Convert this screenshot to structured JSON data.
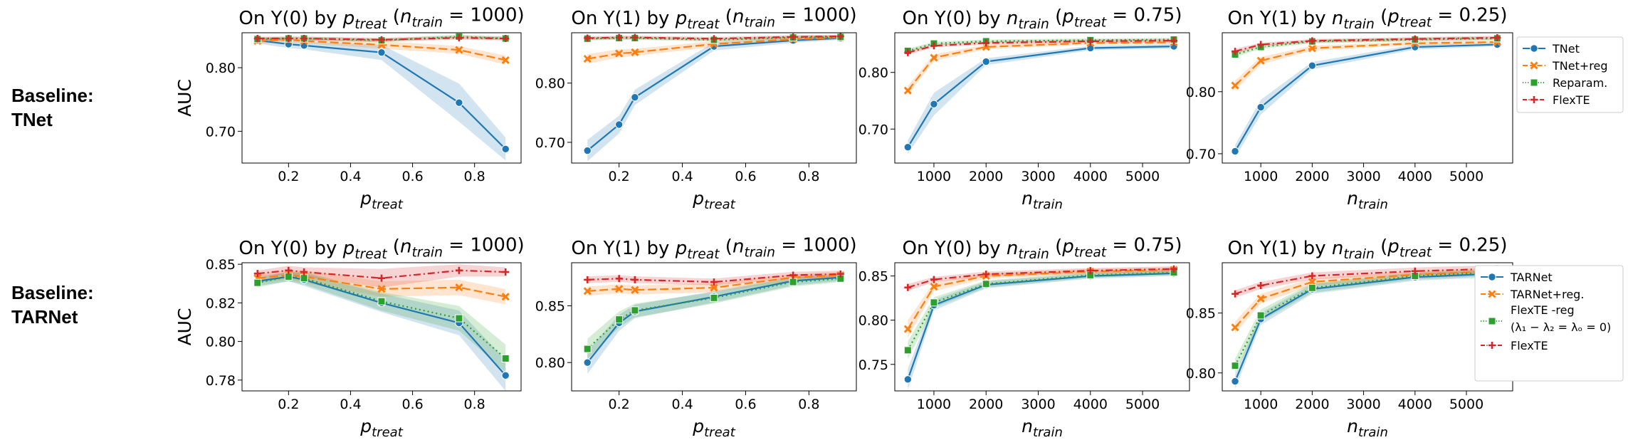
{
  "row_labels": [
    "Baseline:\nTNet",
    "Baseline:\nTARNet"
  ],
  "legends": [
    {
      "entries": [
        {
          "label": "TNet",
          "color": "#1f77b4",
          "marker": "circle",
          "dash": "solid"
        },
        {
          "label": "TNet+reg",
          "color": "#ff7f0e",
          "marker": "x",
          "dash": "dashed"
        },
        {
          "label": "Reparam.",
          "color": "#2ca02c",
          "marker": "square",
          "dash": "dotted"
        },
        {
          "label": "FlexTE",
          "color": "#d62728",
          "marker": "plus",
          "dash": "dashdot"
        }
      ]
    },
    {
      "entries": [
        {
          "label": "TARNet",
          "color": "#1f77b4",
          "marker": "circle",
          "dash": "solid"
        },
        {
          "label": "TARNet+reg.",
          "color": "#ff7f0e",
          "marker": "x",
          "dash": "dashed"
        },
        {
          "label": "FlexTE -reg",
          "label2": "(λ₁ − λ₂ = λₒ = 0)",
          "color": "#2ca02c",
          "marker": "square",
          "dash": "dotted"
        },
        {
          "label": "FlexTE",
          "color": "#d62728",
          "marker": "plus",
          "dash": "dashdot"
        }
      ]
    }
  ],
  "chart_data": [
    {
      "type": "line",
      "row": 0,
      "col": 0,
      "title": "On Y(0) by p_treat (n_train = 1000)",
      "xlabel": "p_treat",
      "ylabel": "AUC",
      "xlim": [
        0.05,
        0.95
      ],
      "ylim": [
        0.65,
        0.855
      ],
      "xticks": [
        0.2,
        0.4,
        0.6,
        0.8
      ],
      "xticklabels": [
        "0.2",
        "0.4",
        "0.6",
        "0.8"
      ],
      "yticks": [
        0.7,
        0.8
      ],
      "yticklabels": [
        "0.70",
        "0.80"
      ],
      "x": [
        0.1,
        0.2,
        0.25,
        0.5,
        0.75,
        0.9
      ],
      "series": [
        {
          "name": "TNet",
          "values": [
            0.843,
            0.837,
            0.835,
            0.824,
            0.745,
            0.672
          ],
          "band": [
            0.005,
            0.006,
            0.006,
            0.012,
            0.03,
            0.018
          ]
        },
        {
          "name": "TNet+reg",
          "values": [
            0.842,
            0.844,
            0.842,
            0.836,
            0.828,
            0.812
          ],
          "band": [
            0.004,
            0.004,
            0.004,
            0.006,
            0.006,
            0.007
          ]
        },
        {
          "name": "Reparam.",
          "values": [
            0.845,
            0.846,
            0.846,
            0.843,
            0.849,
            0.846
          ],
          "band": [
            0.003,
            0.003,
            0.003,
            0.003,
            0.003,
            0.003
          ]
        },
        {
          "name": "FlexTE",
          "values": [
            0.846,
            0.846,
            0.846,
            0.844,
            0.847,
            0.846
          ],
          "band": [
            0.003,
            0.003,
            0.003,
            0.003,
            0.003,
            0.003
          ]
        }
      ]
    },
    {
      "type": "line",
      "row": 0,
      "col": 1,
      "title": "On Y(1) by p_treat (n_train = 1000)",
      "xlabel": "p_treat",
      "ylabel": "",
      "xlim": [
        0.05,
        0.95
      ],
      "ylim": [
        0.665,
        0.885
      ],
      "xticks": [
        0.2,
        0.4,
        0.6,
        0.8
      ],
      "xticklabels": [
        "0.2",
        "0.4",
        "0.6",
        "0.8"
      ],
      "yticks": [
        0.7,
        0.8
      ],
      "yticklabels": [
        "0.70",
        "0.80"
      ],
      "x": [
        0.1,
        0.2,
        0.25,
        0.5,
        0.75,
        0.9
      ],
      "series": [
        {
          "name": "TNet",
          "values": [
            0.686,
            0.73,
            0.776,
            0.862,
            0.872,
            0.876
          ],
          "band": [
            0.018,
            0.015,
            0.013,
            0.007,
            0.004,
            0.003
          ]
        },
        {
          "name": "TNet+reg",
          "values": [
            0.841,
            0.85,
            0.852,
            0.866,
            0.874,
            0.877
          ],
          "band": [
            0.008,
            0.007,
            0.006,
            0.005,
            0.004,
            0.003
          ]
        },
        {
          "name": "Reparam.",
          "values": [
            0.875,
            0.876,
            0.876,
            0.873,
            0.877,
            0.878
          ],
          "band": [
            0.003,
            0.003,
            0.003,
            0.003,
            0.003,
            0.003
          ]
        },
        {
          "name": "FlexTE",
          "values": [
            0.876,
            0.877,
            0.877,
            0.875,
            0.878,
            0.879
          ],
          "band": [
            0.003,
            0.003,
            0.003,
            0.003,
            0.003,
            0.003
          ]
        }
      ]
    },
    {
      "type": "line",
      "row": 0,
      "col": 2,
      "title": "On Y(0) by n_train (p_treat = 0.75)",
      "xlabel": "n_train",
      "ylabel": "",
      "xlim": [
        250,
        5900
      ],
      "ylim": [
        0.64,
        0.87
      ],
      "xticks": [
        1000,
        2000,
        3000,
        4000,
        5000
      ],
      "xticklabels": [
        "1000",
        "2000",
        "3000",
        "4000",
        "5000"
      ],
      "yticks": [
        0.7,
        0.8
      ],
      "yticklabels": [
        "0.70",
        "0.80"
      ],
      "x": [
        500,
        1000,
        2000,
        4000,
        5600
      ],
      "series": [
        {
          "name": "TNet",
          "values": [
            0.668,
            0.744,
            0.819,
            0.843,
            0.846
          ],
          "band": [
            0.012,
            0.02,
            0.006,
            0.004,
            0.004
          ]
        },
        {
          "name": "TNet+reg",
          "values": [
            0.768,
            0.826,
            0.845,
            0.852,
            0.853
          ],
          "band": [
            0.008,
            0.006,
            0.004,
            0.003,
            0.003
          ]
        },
        {
          "name": "Reparam.",
          "values": [
            0.838,
            0.851,
            0.855,
            0.857,
            0.858
          ],
          "band": [
            0.004,
            0.003,
            0.003,
            0.003,
            0.003
          ]
        },
        {
          "name": "FlexTE",
          "values": [
            0.835,
            0.847,
            0.852,
            0.855,
            0.856
          ],
          "band": [
            0.004,
            0.003,
            0.003,
            0.003,
            0.003
          ]
        }
      ]
    },
    {
      "type": "line",
      "row": 0,
      "col": 3,
      "title": "On Y(1) by n_train (p_treat = 0.25)",
      "xlabel": "n_train",
      "ylabel": "",
      "xlim": [
        250,
        5900
      ],
      "ylim": [
        0.685,
        0.895
      ],
      "xticks": [
        1000,
        2000,
        3000,
        4000,
        5000
      ],
      "xticklabels": [
        "1000",
        "2000",
        "3000",
        "4000",
        "5000"
      ],
      "yticks": [
        0.7,
        0.8
      ],
      "yticklabels": [
        "0.70",
        "0.80"
      ],
      "x": [
        500,
        1000,
        2000,
        4000,
        5600
      ],
      "series": [
        {
          "name": "TNet",
          "values": [
            0.704,
            0.775,
            0.842,
            0.872,
            0.876
          ],
          "band": [
            0.01,
            0.012,
            0.006,
            0.004,
            0.003
          ]
        },
        {
          "name": "TNet+reg",
          "values": [
            0.81,
            0.85,
            0.87,
            0.878,
            0.88
          ],
          "band": [
            0.008,
            0.006,
            0.004,
            0.003,
            0.003
          ]
        },
        {
          "name": "Reparam.",
          "values": [
            0.86,
            0.872,
            0.881,
            0.884,
            0.886
          ],
          "band": [
            0.004,
            0.003,
            0.003,
            0.003,
            0.003
          ]
        },
        {
          "name": "FlexTE",
          "values": [
            0.865,
            0.876,
            0.882,
            0.885,
            0.887
          ],
          "band": [
            0.004,
            0.003,
            0.003,
            0.003,
            0.003
          ]
        }
      ]
    },
    {
      "type": "line",
      "row": 1,
      "col": 0,
      "title": "On Y(0) by p_treat (n_train = 1000)",
      "xlabel": "p_treat",
      "ylabel": "AUC",
      "xlim": [
        0.05,
        0.95
      ],
      "ylim": [
        0.768,
        0.851
      ],
      "xticks": [
        0.2,
        0.4,
        0.6,
        0.8
      ],
      "xticklabels": [
        "0.2",
        "0.4",
        "0.6",
        "0.8"
      ],
      "yticks": [
        0.775,
        0.8,
        0.825,
        0.85
      ],
      "yticklabels": [
        "0.78",
        "0.80",
        "0.82",
        "0.85"
      ],
      "x": [
        0.1,
        0.2,
        0.25,
        0.5,
        0.75,
        0.9
      ],
      "series": [
        {
          "name": "TARNet",
          "values": [
            0.839,
            0.842,
            0.84,
            0.825,
            0.812,
            0.778
          ],
          "band": [
            0.003,
            0.003,
            0.004,
            0.006,
            0.008,
            0.01
          ]
        },
        {
          "name": "TARNet+reg.",
          "values": [
            0.841,
            0.843,
            0.842,
            0.834,
            0.835,
            0.829
          ],
          "band": [
            0.003,
            0.003,
            0.004,
            0.005,
            0.005,
            0.005
          ]
        },
        {
          "name": "FlexTE -reg (λ₁ − λ₂ = λₒ = 0)",
          "values": [
            0.838,
            0.842,
            0.841,
            0.826,
            0.815,
            0.789
          ],
          "band": [
            0.003,
            0.003,
            0.004,
            0.006,
            0.008,
            0.009
          ]
        },
        {
          "name": "FlexTE",
          "values": [
            0.844,
            0.846,
            0.845,
            0.841,
            0.846,
            0.845
          ],
          "band": [
            0.002,
            0.003,
            0.003,
            0.006,
            0.004,
            0.003
          ]
        }
      ]
    },
    {
      "type": "line",
      "row": 1,
      "col": 1,
      "title": "On Y(1) by p_treat (n_train = 1000)",
      "xlabel": "p_treat",
      "ylabel": "",
      "xlim": [
        0.05,
        0.95
      ],
      "ylim": [
        0.775,
        0.888
      ],
      "xticks": [
        0.2,
        0.4,
        0.6,
        0.8
      ],
      "xticklabels": [
        "0.2",
        "0.4",
        "0.6",
        "0.8"
      ],
      "yticks": [
        0.8,
        0.85
      ],
      "yticklabels": [
        "0.80",
        "0.85"
      ],
      "x": [
        0.1,
        0.2,
        0.25,
        0.5,
        0.75,
        0.9
      ],
      "series": [
        {
          "name": "TARNet",
          "values": [
            0.8,
            0.835,
            0.845,
            0.858,
            0.872,
            0.875
          ],
          "band": [
            0.01,
            0.007,
            0.006,
            0.005,
            0.004,
            0.003
          ]
        },
        {
          "name": "TARNet+reg.",
          "values": [
            0.863,
            0.865,
            0.864,
            0.866,
            0.875,
            0.877
          ],
          "band": [
            0.004,
            0.004,
            0.004,
            0.004,
            0.003,
            0.003
          ]
        },
        {
          "name": "FlexTE -reg (λ₁ − λ₂ = λₒ = 0)",
          "values": [
            0.812,
            0.838,
            0.846,
            0.857,
            0.871,
            0.874
          ],
          "band": [
            0.009,
            0.007,
            0.006,
            0.005,
            0.004,
            0.003
          ]
        },
        {
          "name": "FlexTE",
          "values": [
            0.873,
            0.874,
            0.873,
            0.871,
            0.877,
            0.878
          ],
          "band": [
            0.003,
            0.003,
            0.003,
            0.003,
            0.003,
            0.003
          ]
        }
      ]
    },
    {
      "type": "line",
      "row": 1,
      "col": 2,
      "title": "On Y(0) by n_train (p_treat = 0.75)",
      "xlabel": "n_train",
      "ylabel": "",
      "xlim": [
        250,
        5900
      ],
      "ylim": [
        0.72,
        0.865
      ],
      "xticks": [
        1000,
        2000,
        3000,
        4000,
        5000
      ],
      "xticklabels": [
        "1000",
        "2000",
        "3000",
        "4000",
        "5000"
      ],
      "yticks": [
        0.75,
        0.8,
        0.85
      ],
      "yticklabels": [
        "0.75",
        "0.80",
        "0.85"
      ],
      "x": [
        500,
        1000,
        2000,
        4000,
        5600
      ],
      "series": [
        {
          "name": "TARNet",
          "values": [
            0.733,
            0.817,
            0.84,
            0.85,
            0.853
          ],
          "band": [
            0.012,
            0.006,
            0.004,
            0.003,
            0.003
          ]
        },
        {
          "name": "TARNet+reg.",
          "values": [
            0.79,
            0.838,
            0.85,
            0.855,
            0.857
          ],
          "band": [
            0.01,
            0.005,
            0.003,
            0.003,
            0.003
          ]
        },
        {
          "name": "FlexTE -reg (λ₁ − λ₂ = λₒ = 0)",
          "values": [
            0.766,
            0.82,
            0.841,
            0.851,
            0.854
          ],
          "band": [
            0.01,
            0.006,
            0.004,
            0.003,
            0.003
          ]
        },
        {
          "name": "FlexTE",
          "values": [
            0.837,
            0.846,
            0.852,
            0.856,
            0.858
          ],
          "band": [
            0.004,
            0.003,
            0.003,
            0.003,
            0.003
          ]
        }
      ]
    },
    {
      "type": "line",
      "row": 1,
      "col": 3,
      "title": "On Y(1) by n_train (p_treat = 0.25)",
      "xlabel": "n_train",
      "ylabel": "",
      "xlim": [
        250,
        5900
      ],
      "ylim": [
        0.785,
        0.892
      ],
      "xticks": [
        1000,
        2000,
        3000,
        4000,
        5000
      ],
      "xticklabels": [
        "1000",
        "2000",
        "3000",
        "4000",
        "5000"
      ],
      "yticks": [
        0.8,
        0.85
      ],
      "yticklabels": [
        "0.80",
        "0.85"
      ],
      "x": [
        500,
        1000,
        2000,
        4000,
        5600
      ],
      "series": [
        {
          "name": "TARNet",
          "values": [
            0.793,
            0.845,
            0.87,
            0.88,
            0.883
          ],
          "band": [
            0.006,
            0.005,
            0.004,
            0.003,
            0.003
          ]
        },
        {
          "name": "TARNet+reg.",
          "values": [
            0.838,
            0.862,
            0.876,
            0.882,
            0.885
          ],
          "band": [
            0.005,
            0.004,
            0.003,
            0.003,
            0.003
          ]
        },
        {
          "name": "FlexTE -reg (λ₁ − λ₂ = λₒ = 0)",
          "values": [
            0.806,
            0.848,
            0.871,
            0.881,
            0.884
          ],
          "band": [
            0.006,
            0.005,
            0.004,
            0.003,
            0.003
          ]
        },
        {
          "name": "FlexTE",
          "values": [
            0.866,
            0.873,
            0.881,
            0.885,
            0.887
          ],
          "band": [
            0.003,
            0.003,
            0.003,
            0.003,
            0.003
          ]
        }
      ]
    }
  ]
}
